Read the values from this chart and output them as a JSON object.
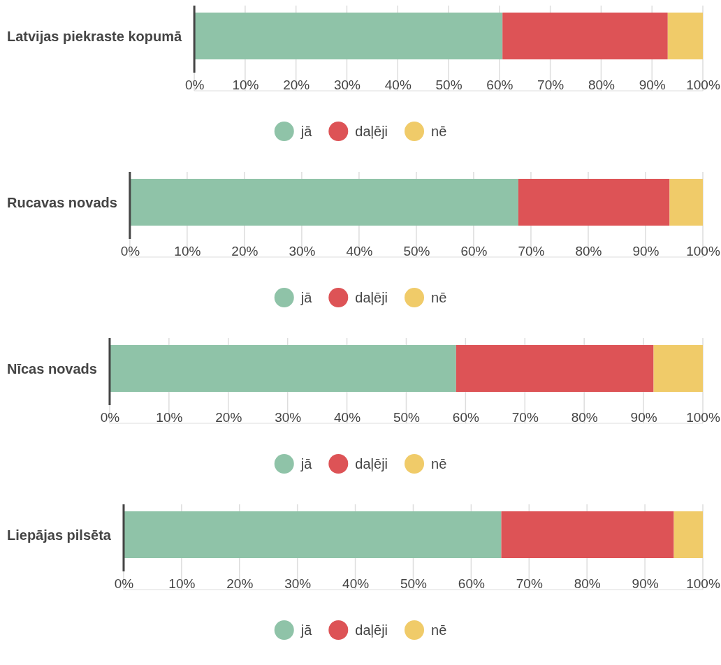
{
  "chart_data": [
    {
      "type": "bar",
      "orientation": "horizontal",
      "stacked": true,
      "categories": [
        "Latvijas piekraste kopumā"
      ],
      "series": [
        {
          "name": "jā",
          "color": "#8fc3a8",
          "values": [
            60.6
          ]
        },
        {
          "name": "daļēji",
          "color": "#dd5356",
          "values": [
            32.5
          ]
        },
        {
          "name": "nē",
          "color": "#f0cb69",
          "values": [
            6.9
          ]
        }
      ],
      "xlim": [
        0,
        100
      ],
      "xticks": [
        {
          "value": 0,
          "label": "0%"
        },
        {
          "value": 10,
          "label": "10%"
        },
        {
          "value": 20,
          "label": "20%"
        },
        {
          "value": 30,
          "label": "30%"
        },
        {
          "value": 40,
          "label": "40%"
        },
        {
          "value": 50,
          "label": "50%"
        },
        {
          "value": 60,
          "label": "60%"
        },
        {
          "value": 70,
          "label": "70%"
        },
        {
          "value": 80,
          "label": "80%"
        },
        {
          "value": 90,
          "label": "90%"
        },
        {
          "value": 100,
          "label": "100%"
        }
      ],
      "grid": "x",
      "legend": "bottom"
    },
    {
      "type": "bar",
      "orientation": "horizontal",
      "stacked": true,
      "categories": [
        "Rucavas novads"
      ],
      "series": [
        {
          "name": "jā",
          "color": "#8fc3a8",
          "values": [
            67.8
          ]
        },
        {
          "name": "daļēji",
          "color": "#dd5356",
          "values": [
            26.4
          ]
        },
        {
          "name": "nē",
          "color": "#f0cb69",
          "values": [
            5.8
          ]
        }
      ],
      "xlim": [
        0,
        100
      ],
      "xticks": [
        {
          "value": 0,
          "label": "0%"
        },
        {
          "value": 10,
          "label": "10%"
        },
        {
          "value": 20,
          "label": "20%"
        },
        {
          "value": 30,
          "label": "30%"
        },
        {
          "value": 40,
          "label": "40%"
        },
        {
          "value": 50,
          "label": "50%"
        },
        {
          "value": 60,
          "label": "60%"
        },
        {
          "value": 70,
          "label": "70%"
        },
        {
          "value": 80,
          "label": "80%"
        },
        {
          "value": 90,
          "label": "90%"
        },
        {
          "value": 100,
          "label": "100%"
        }
      ],
      "grid": "x",
      "legend": "bottom"
    },
    {
      "type": "bar",
      "orientation": "horizontal",
      "stacked": true,
      "categories": [
        "Nīcas novads"
      ],
      "series": [
        {
          "name": "jā",
          "color": "#8fc3a8",
          "values": [
            58.4
          ]
        },
        {
          "name": "daļēji",
          "color": "#dd5356",
          "values": [
            33.3
          ]
        },
        {
          "name": "nē",
          "color": "#f0cb69",
          "values": [
            8.3
          ]
        }
      ],
      "xlim": [
        0,
        100
      ],
      "xticks": [
        {
          "value": 0,
          "label": "0%"
        },
        {
          "value": 10,
          "label": "10%"
        },
        {
          "value": 20,
          "label": "20%"
        },
        {
          "value": 30,
          "label": "30%"
        },
        {
          "value": 40,
          "label": "40%"
        },
        {
          "value": 50,
          "label": "50%"
        },
        {
          "value": 60,
          "label": "60%"
        },
        {
          "value": 70,
          "label": "70%"
        },
        {
          "value": 80,
          "label": "80%"
        },
        {
          "value": 90,
          "label": "90%"
        },
        {
          "value": 100,
          "label": "100%"
        }
      ],
      "grid": "x",
      "legend": "bottom"
    },
    {
      "type": "bar",
      "orientation": "horizontal",
      "stacked": true,
      "categories": [
        "Liepājas pilsēta"
      ],
      "series": [
        {
          "name": "jā",
          "color": "#8fc3a8",
          "values": [
            65.2
          ]
        },
        {
          "name": "daļēji",
          "color": "#dd5356",
          "values": [
            29.8
          ]
        },
        {
          "name": "nē",
          "color": "#f0cb69",
          "values": [
            5.0
          ]
        }
      ],
      "xlim": [
        0,
        100
      ],
      "xticks": [
        {
          "value": 0,
          "label": "0%"
        },
        {
          "value": 10,
          "label": "10%"
        },
        {
          "value": 20,
          "label": "20%"
        },
        {
          "value": 30,
          "label": "30%"
        },
        {
          "value": 40,
          "label": "40%"
        },
        {
          "value": 50,
          "label": "50%"
        },
        {
          "value": 60,
          "label": "60%"
        },
        {
          "value": 70,
          "label": "70%"
        },
        {
          "value": 80,
          "label": "80%"
        },
        {
          "value": 90,
          "label": "90%"
        },
        {
          "value": 100,
          "label": "100%"
        }
      ],
      "grid": "x",
      "legend": "bottom"
    }
  ]
}
